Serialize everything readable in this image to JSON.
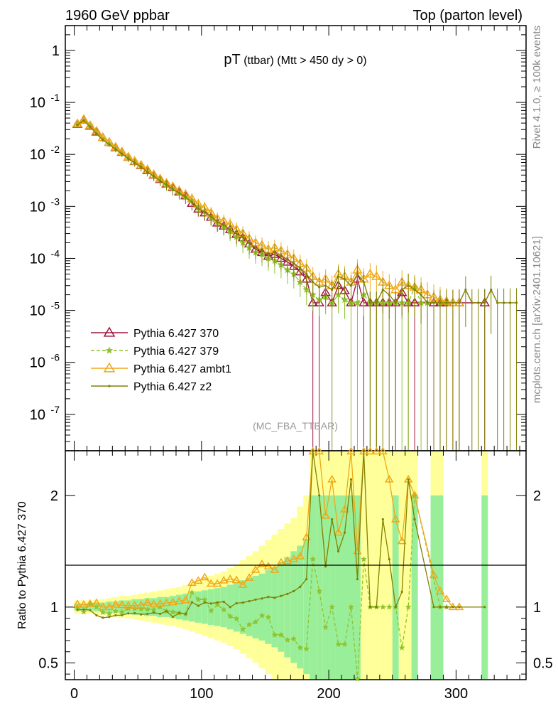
{
  "header": {
    "left": "1960 GeV ppbar",
    "right": "Top (parton level)"
  },
  "side": {
    "rivet": "Rivet 4.1.0, ≥ 100k events",
    "mcplots": "mcplots.cern.ch [arXiv:2401.10621]"
  },
  "chart_data": {
    "type": "line",
    "title": "pT (ttbar) (Mtt > 450 dy > 0)",
    "title_main": "pT",
    "title_sub": "(ttbar) (Mtt > 450 dy > 0)",
    "analysis_tag": "(MC_FBA_TTBAR)",
    "xlabel": "",
    "ylabel": "",
    "ratio_ylabel": "Ratio to Pythia 6.427 370",
    "xlim": [
      -7,
      355
    ],
    "ylim": [
      2e-08,
      3
    ],
    "yscale": "log",
    "ratio_ylim": [
      0.35,
      2.4
    ],
    "x_ticks": [
      0,
      100,
      200,
      300
    ],
    "y_ticks": [
      {
        "value": 1,
        "label": "1"
      },
      {
        "value": 0.1,
        "label": "10^-1"
      },
      {
        "value": 0.01,
        "label": "10^-2"
      },
      {
        "value": 0.001,
        "label": "10^-3"
      },
      {
        "value": 0.0001,
        "label": "10^-4"
      },
      {
        "value": 1e-05,
        "label": "10^-5"
      },
      {
        "value": 1e-06,
        "label": "10^-6"
      },
      {
        "value": 1e-07,
        "label": "10^-7"
      }
    ],
    "ratio_ticks": [
      {
        "value": 0.5,
        "label": "0.5"
      },
      {
        "value": 1,
        "label": "1"
      },
      {
        "value": 2,
        "label": "2"
      }
    ],
    "x": [
      2.5,
      7.5,
      12.5,
      17.5,
      22.5,
      27.5,
      32.5,
      37.5,
      42.5,
      47.5,
      52.5,
      57.5,
      62.5,
      67.5,
      72.5,
      77.5,
      82.5,
      87.5,
      92.5,
      97.5,
      102.5,
      107.5,
      112.5,
      117.5,
      122.5,
      127.5,
      132.5,
      137.5,
      142.5,
      147.5,
      152.5,
      157.5,
      162.5,
      167.5,
      172.5,
      177.5,
      182.5,
      187.5,
      192.5,
      197.5,
      202.5,
      207.5,
      212.5,
      217.5,
      222.5,
      227.5,
      232.5,
      237.5,
      242.5,
      247.5,
      252.5,
      257.5,
      262.5,
      267.5,
      272.5,
      277.5,
      282.5,
      287.5,
      292.5,
      297.5,
      302.5,
      307.5,
      312.5,
      317.5,
      322.5,
      327.5,
      332.5,
      337.5,
      342.5,
      347.5
    ],
    "series": [
      {
        "name": "Pythia 6.427 370",
        "color": "#a0153e",
        "marker": "triangle-open",
        "dash": "none",
        "values": [
          0.038,
          0.046,
          0.035,
          0.027,
          0.021,
          0.017,
          0.0135,
          0.011,
          0.0088,
          0.0073,
          0.0061,
          0.0049,
          0.004,
          0.0033,
          0.0027,
          0.0023,
          0.0019,
          0.0016,
          0.00115,
          0.00089,
          0.00075,
          0.00062,
          0.00048,
          0.00042,
          0.00036,
          0.00029,
          0.00025,
          0.00019,
          0.00015,
          0.00013,
          0.00011,
          0.00012,
          0.0001,
          8.5e-05,
          7e-05,
          5.5e-05,
          4e-05,
          1.4e-05,
          1.4e-05,
          2.2e-05,
          1.4e-05,
          3e-05,
          2.4e-05,
          1.4e-05,
          4e-05,
          1.4e-05,
          1.4e-05,
          1.4e-05,
          1.4e-05,
          1.4e-05,
          1.4e-05,
          2.2e-05,
          1.4e-05,
          1.4e-05,
          null,
          null,
          1.4e-05,
          1.4e-05,
          1.4e-05,
          1.4e-05,
          1.4e-05,
          null,
          null,
          null,
          1.4e-05,
          null,
          null,
          null,
          null,
          null
        ]
      },
      {
        "name": "Pythia 6.427 379",
        "color": "#8fc42e",
        "marker": "star",
        "dash": "dashed",
        "values": [
          0.038,
          0.044,
          0.036,
          0.027,
          0.02,
          0.016,
          0.013,
          0.0105,
          0.0087,
          0.0072,
          0.006,
          0.0048,
          0.0039,
          0.0033,
          0.0026,
          0.0022,
          0.0018,
          0.0015,
          0.0013,
          0.00095,
          0.0008,
          0.0006,
          0.00049,
          0.00041,
          0.00033,
          0.00026,
          0.0002,
          0.00016,
          0.00013,
          0.00012,
          0.0001,
          9e-05,
          7.5e-05,
          6e-05,
          5e-05,
          3.5e-05,
          2.5e-05,
          2e-05,
          1.6e-05,
          1.8e-05,
          1.4e-05,
          2e-05,
          1.6e-05,
          1.4e-05,
          1.4e-05,
          2e-05,
          1.4e-05,
          1.4e-05,
          1.4e-05,
          1.4e-05,
          1.4e-05,
          1.4e-05,
          1.4e-05,
          2.8e-05,
          1.4e-05,
          1.4e-05,
          null,
          1.4e-05,
          1.4e-05,
          null,
          null,
          null,
          null,
          null,
          null,
          null,
          null,
          null,
          null,
          null
        ]
      },
      {
        "name": "Pythia 6.427 ambt1",
        "color": "#f0a818",
        "marker": "triangle-open",
        "dash": "none",
        "values": [
          0.039,
          0.047,
          0.036,
          0.028,
          0.021,
          0.017,
          0.0138,
          0.0112,
          0.0089,
          0.0074,
          0.0062,
          0.0051,
          0.0041,
          0.0034,
          0.0028,
          0.0024,
          0.002,
          0.0017,
          0.0014,
          0.0011,
          0.00095,
          0.00075,
          0.00058,
          0.00052,
          0.00045,
          0.00036,
          0.0003,
          0.00024,
          0.0002,
          0.00018,
          0.00015,
          0.00016,
          0.00014,
          0.00012,
          0.0001,
          8e-05,
          6.5e-05,
          4.5e-05,
          3.5e-05,
          4e-05,
          3e-05,
          5e-05,
          4.5e-05,
          3.5e-05,
          6e-05,
          4e-05,
          5e-05,
          4.5e-05,
          3.5e-05,
          3e-05,
          2.5e-05,
          3.5e-05,
          3e-05,
          2.8e-05,
          2.5e-05,
          2e-05,
          1.8e-05,
          1.6e-05,
          1.5e-05,
          1.4e-05,
          1.4e-05,
          null,
          null,
          null,
          null,
          null,
          null,
          null,
          null,
          null
        ]
      },
      {
        "name": "Pythia 6.427 z2",
        "color": "#808000",
        "marker": "dot",
        "dash": "none",
        "values": [
          0.037,
          0.045,
          0.034,
          0.025,
          0.019,
          0.0155,
          0.0125,
          0.0102,
          0.0083,
          0.0069,
          0.0057,
          0.0046,
          0.0038,
          0.0031,
          0.0026,
          0.0021,
          0.0018,
          0.0015,
          0.0012,
          0.0009,
          0.00078,
          0.00064,
          0.0005,
          0.00044,
          0.00036,
          0.0003,
          0.00026,
          0.0002,
          0.00016,
          0.00014,
          0.00012,
          0.00013,
          0.00011,
          9.5e-05,
          8e-05,
          6.5e-05,
          5e-05,
          3.5e-05,
          2.8e-05,
          3e-05,
          2.5e-05,
          4.5e-05,
          4e-05,
          3e-05,
          5e-05,
          3.5e-05,
          1.4e-05,
          1.4e-05,
          2.5e-05,
          2e-05,
          1.4e-05,
          2.5e-05,
          3e-05,
          2.5e-05,
          2e-05,
          1.4e-05,
          1.4e-05,
          1.4e-05,
          1.4e-05,
          1.4e-05,
          1.4e-05,
          2.5e-05,
          1.4e-05,
          1.4e-05,
          1.4e-05,
          2.5e-05,
          1.4e-05,
          1.4e-05,
          1.4e-05,
          1.4e-05
        ]
      }
    ],
    "ratio_band": {
      "rel_err_inner": [
        0.03,
        0.03,
        0.03,
        0.04,
        0.04,
        0.05,
        0.05,
        0.06,
        0.06,
        0.07,
        0.07,
        0.08,
        0.08,
        0.09,
        0.09,
        0.1,
        0.11,
        0.12,
        0.13,
        0.14,
        0.15,
        0.16,
        0.17,
        0.18,
        0.2,
        0.22,
        0.24,
        0.26,
        0.28,
        0.3,
        0.33,
        0.36,
        0.4,
        0.45,
        0.5,
        0.55,
        0.6,
        1,
        1,
        1,
        1,
        1,
        1,
        1,
        1,
        null,
        null,
        null,
        null,
        null,
        1,
        null,
        null,
        1,
        null,
        null,
        1,
        1,
        null,
        null,
        null,
        null,
        null,
        null,
        1,
        null,
        null,
        null,
        null,
        null
      ],
      "rel_err_outer": [
        0.06,
        0.06,
        0.06,
        0.07,
        0.07,
        0.08,
        0.09,
        0.1,
        0.1,
        0.11,
        0.12,
        0.13,
        0.14,
        0.15,
        0.16,
        0.17,
        0.18,
        0.2,
        0.22,
        0.24,
        0.26,
        0.28,
        0.3,
        0.32,
        0.35,
        0.38,
        0.42,
        0.46,
        0.5,
        0.55,
        0.6,
        0.65,
        0.7,
        0.75,
        0.8,
        0.9,
        1,
        1.4,
        1.4,
        1.4,
        1.4,
        1.4,
        1.4,
        1.4,
        1.4,
        1.4,
        1.4,
        1.4,
        1.4,
        1.4,
        1.4,
        1.4,
        1.4,
        1.4,
        null,
        null,
        1.4,
        1.4,
        null,
        null,
        null,
        null,
        null,
        null,
        1.4,
        null,
        null,
        null,
        null,
        null
      ]
    },
    "legend_position": "middle-left"
  }
}
